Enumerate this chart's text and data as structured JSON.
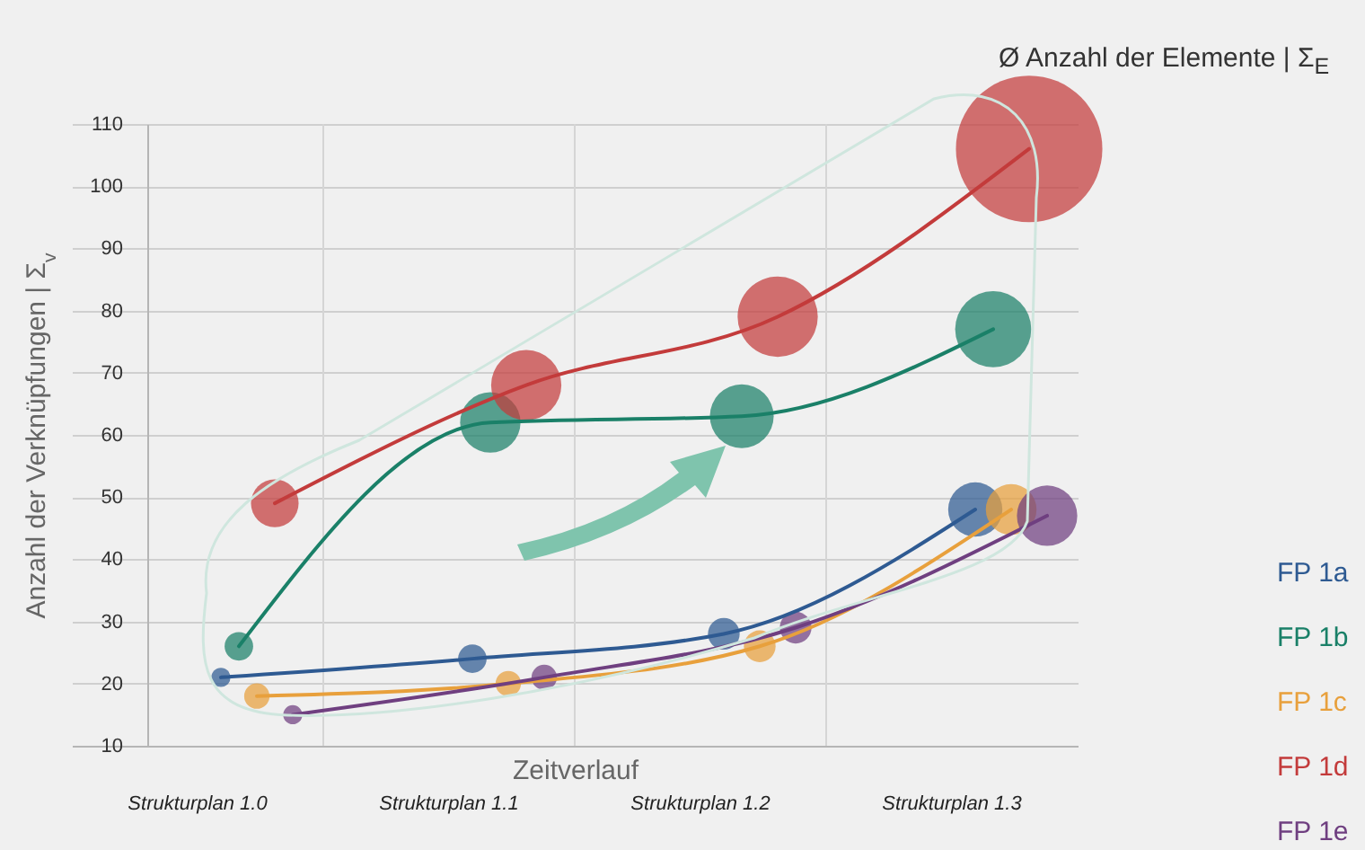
{
  "chart_data": {
    "type": "bubble",
    "title": "Ø Anzahl der Elemente | Σ$_{E}$",
    "xlabel": "Zeitverlauf",
    "ylabel": "Anzahl der Verknüpfungen | Σ$_{v}$",
    "categories": [
      "Strukturplan 1.0",
      "Strukturplan 1.1",
      "Strukturplan 1.2",
      "Strukturplan 1.3"
    ],
    "ylim": [
      10,
      110
    ],
    "yticks": [
      10,
      20,
      30,
      40,
      50,
      60,
      70,
      80,
      90,
      100,
      110
    ],
    "grid": true,
    "legend": "right",
    "series": [
      {
        "name": "FP 1a",
        "color": "#2e5a92",
        "values": [
          21,
          24,
          28,
          48
        ],
        "sizes": [
          0.017,
          0.038,
          0.047,
          0.137
        ]
      },
      {
        "name": "FP 1b",
        "color": "#1a8068",
        "values": [
          26,
          62,
          63,
          77
        ],
        "sizes": [
          0.038,
          0.17,
          0.19,
          0.27
        ]
      },
      {
        "name": "FP 1c",
        "color": "#e8a03c",
        "values": [
          18,
          20,
          26,
          48
        ],
        "sizes": [
          0.03,
          0.03,
          0.047,
          0.12
        ]
      },
      {
        "name": "FP 1d",
        "color": "#c33b3b",
        "values": [
          49,
          68,
          79,
          106
        ],
        "sizes": [
          0.106,
          0.23,
          0.3,
          1
        ]
      },
      {
        "name": "FP 1e",
        "color": "#6f3f80",
        "values": [
          15,
          21,
          29,
          47
        ],
        "sizes": [
          0.017,
          0.03,
          0.047,
          0.17
        ]
      },
      {
        "type": "line",
        "color": "#2e5a92",
        "values": [
          21,
          24,
          28,
          48
        ]
      },
      {
        "type": "line",
        "color": "#1a8068",
        "values": [
          26,
          62,
          63,
          77
        ]
      },
      {
        "type": "line",
        "color": "#e8a03c",
        "values": [
          18,
          20,
          26,
          48
        ]
      },
      {
        "type": "line",
        "color": "#c33b3b",
        "values": [
          49,
          68,
          79,
          106
        ]
      },
      {
        "type": "line",
        "color": "#6f3f80",
        "values": [
          15,
          21,
          29,
          47
        ]
      }
    ]
  }
}
